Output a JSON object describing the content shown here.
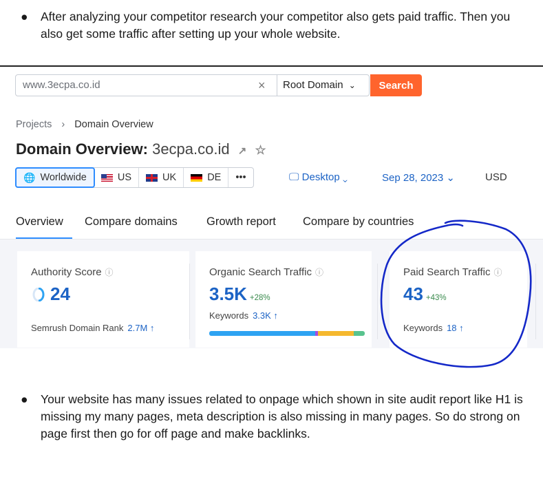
{
  "doc": {
    "bullet1": "After analyzing your competitor research your competitor also gets paid traffic. Then you also get some traffic after setting up your whole website.",
    "bullet2": "Your website has many issues related to onpage which shown in site audit report like H1 is missing my many pages, meta description is also missing in many pages. So do strong on page first then go for off page and make backlinks.",
    "bullet_symbol": "●"
  },
  "toolbar": {
    "search_value": "www.3ecpa.co.id",
    "clear_symbol": "×",
    "root_domain_label": "Root Domain",
    "search_label": "Search",
    "accent": "#ff642d"
  },
  "breadcrumb": {
    "root": "Projects",
    "sep": "›",
    "current": "Domain Overview"
  },
  "title": {
    "prefix": "Domain Overview:",
    "domain": "3ecpa.co.id"
  },
  "regions": [
    {
      "label": "Worldwide"
    },
    {
      "label": "US"
    },
    {
      "label": "UK"
    },
    {
      "label": "DE"
    },
    {
      "label": "•••"
    }
  ],
  "filters": {
    "device": "Desktop",
    "date": "Sep 28, 2023",
    "currency": "USD"
  },
  "tabs": [
    "Overview",
    "Compare domains",
    "Growth report",
    "Compare by countries"
  ],
  "cards": {
    "authority": {
      "label": "Authority Score",
      "value": "24",
      "sub_label": "Semrush Domain Rank",
      "sub_value": "2.7M ↑"
    },
    "organic": {
      "label": "Organic Search Traffic",
      "value": "3.5K",
      "delta": "+28%",
      "sub_label": "Keywords",
      "sub_value": "3.3K ↑",
      "bar_segments": [
        {
          "color": "#2ea3f2",
          "frac": 0.68
        },
        {
          "color": "#a34ee0",
          "frac": 0.02
        },
        {
          "color": "#f5b82e",
          "frac": 0.23
        },
        {
          "color": "#58c38e",
          "frac": 0.07
        }
      ]
    },
    "paid": {
      "label": "Paid Search Traffic",
      "value": "43",
      "delta": "+43%",
      "sub_label": "Keywords",
      "sub_value": "18 ↑"
    }
  },
  "colors": {
    "link_blue": "#1c63c5",
    "annotation_ink": "#1428c8"
  }
}
